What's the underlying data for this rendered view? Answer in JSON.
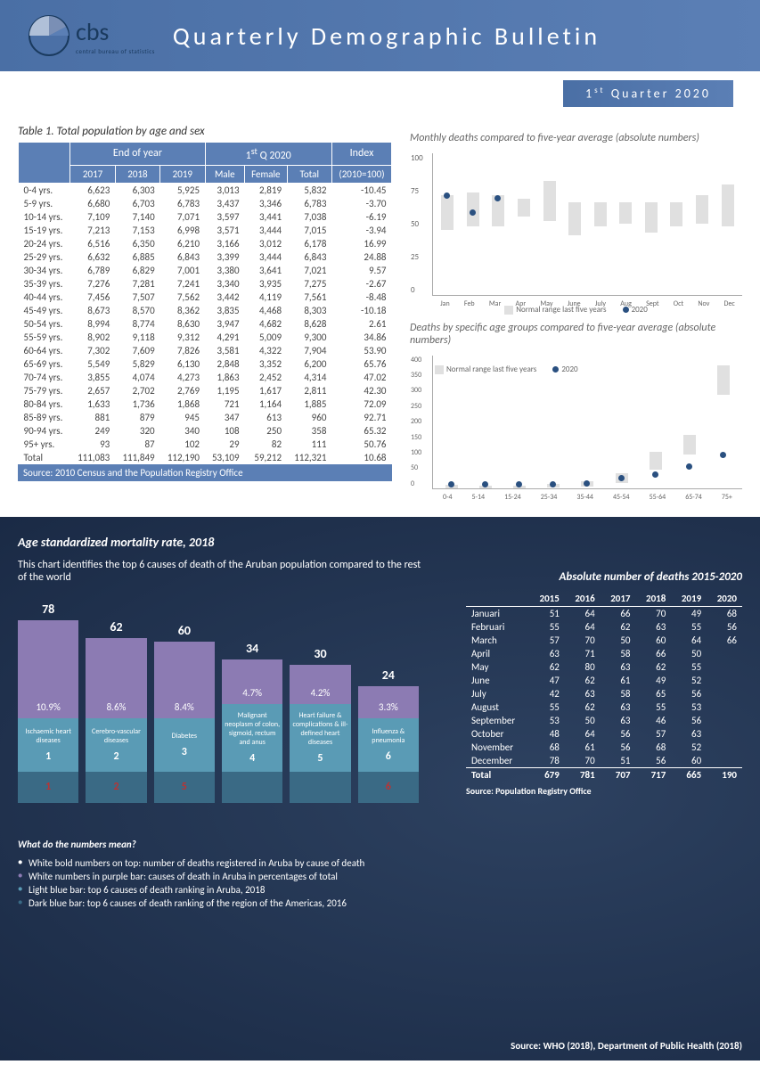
{
  "header": {
    "org": "cbs",
    "org_sub": "central bureau of statistics",
    "title": "Quarterly Demographic Bulletin",
    "quarter": "1",
    "quarter_suffix": "st",
    "quarter_rest": "Quarter 2020"
  },
  "table1": {
    "caption": "Table 1. Total population by age and sex",
    "group1": "End of year",
    "group2": "1",
    "group2_sup": "st",
    "group2_rest": "Q 2020",
    "group3": "Index",
    "cols": [
      "",
      "2017",
      "2018",
      "2019",
      "Male",
      "Female",
      "Total",
      "(2010=100)"
    ],
    "rows": [
      [
        "0-4 yrs.",
        "6,623",
        "6,303",
        "5,925",
        "3,013",
        "2,819",
        "5,832",
        "-10.45"
      ],
      [
        "5-9 yrs.",
        "6,680",
        "6,703",
        "6,783",
        "3,437",
        "3,346",
        "6,783",
        "-3.70"
      ],
      [
        "10-14 yrs.",
        "7,109",
        "7,140",
        "7,071",
        "3,597",
        "3,441",
        "7,038",
        "-6.19"
      ],
      [
        "15-19 yrs.",
        "7,213",
        "7,153",
        "6,998",
        "3,571",
        "3,444",
        "7,015",
        "-3.94"
      ],
      [
        "20-24 yrs.",
        "6,516",
        "6,350",
        "6,210",
        "3,166",
        "3,012",
        "6,178",
        "16.99"
      ],
      [
        "25-29 yrs.",
        "6,632",
        "6,885",
        "6,843",
        "3,399",
        "3,444",
        "6,843",
        "24.88"
      ],
      [
        "30-34 yrs.",
        "6,789",
        "6,829",
        "7,001",
        "3,380",
        "3,641",
        "7,021",
        "9.57"
      ],
      [
        "35-39 yrs.",
        "7,276",
        "7,281",
        "7,241",
        "3,340",
        "3,935",
        "7,275",
        "-2.67"
      ],
      [
        "40-44 yrs.",
        "7,456",
        "7,507",
        "7,562",
        "3,442",
        "4,119",
        "7,561",
        "-8.48"
      ],
      [
        "45-49 yrs.",
        "8,673",
        "8,570",
        "8,362",
        "3,835",
        "4,468",
        "8,303",
        "-10.18"
      ],
      [
        "50-54 yrs.",
        "8,994",
        "8,774",
        "8,630",
        "3,947",
        "4,682",
        "8,628",
        "2.61"
      ],
      [
        "55-59 yrs.",
        "8,902",
        "9,118",
        "9,312",
        "4,291",
        "5,009",
        "9,300",
        "34.86"
      ],
      [
        "60-64 yrs.",
        "7,302",
        "7,609",
        "7,826",
        "3,581",
        "4,322",
        "7,904",
        "53.90"
      ],
      [
        "65-69 yrs.",
        "5,549",
        "5,829",
        "6,130",
        "2,848",
        "3,352",
        "6,200",
        "65.76"
      ],
      [
        "70-74 yrs.",
        "3,855",
        "4,074",
        "4,273",
        "1,863",
        "2,452",
        "4,314",
        "47.02"
      ],
      [
        "75-79 yrs.",
        "2,657",
        "2,702",
        "2,769",
        "1,195",
        "1,617",
        "2,811",
        "42.30"
      ],
      [
        "80-84 yrs.",
        "1,633",
        "1,736",
        "1,868",
        "721",
        "1,164",
        "1,885",
        "72.09"
      ],
      [
        "85-89 yrs.",
        "881",
        "879",
        "945",
        "347",
        "613",
        "960",
        "92.71"
      ],
      [
        "90-94 yrs.",
        "249",
        "320",
        "340",
        "108",
        "250",
        "358",
        "65.32"
      ],
      [
        "95+ yrs.",
        "93",
        "87",
        "102",
        "29",
        "82",
        "111",
        "50.76"
      ]
    ],
    "total": [
      "Total",
      "111,083",
      "111,849",
      "112,190",
      "53,109",
      "59,212",
      "112,321",
      "10.68"
    ],
    "source": "Source: 2010 Census and the Population Registry Office"
  },
  "chart1": {
    "title": "Monthly deaths compared to five-year average (absolute numbers)",
    "ymax": 100,
    "yticks": [
      "100",
      "75",
      "50",
      "25",
      "0"
    ],
    "months": [
      "Jan",
      "Feb",
      "Mar",
      "Apr",
      "May",
      "June",
      "July",
      "Aug",
      "Sept",
      "Oct",
      "Nov",
      "Dec"
    ],
    "ranges": [
      [
        46,
        70
      ],
      [
        48,
        72
      ],
      [
        48,
        70
      ],
      [
        55,
        68
      ],
      [
        52,
        80
      ],
      [
        42,
        65
      ],
      [
        48,
        65
      ],
      [
        50,
        65
      ],
      [
        44,
        65
      ],
      [
        48,
        65
      ],
      [
        50,
        70
      ],
      [
        48,
        78
      ]
    ],
    "points2020": [
      68,
      56,
      66
    ],
    "legend_range": "Normal range last five years",
    "legend_2020": "2020",
    "range_color": "#e0e0e0",
    "dot_color": "#2a5080"
  },
  "chart2": {
    "title": "Deaths by specific age groups compared to five-year average (absolute numbers)",
    "ymax": 400,
    "yticks": [
      "400",
      "350",
      "300",
      "250",
      "200",
      "150",
      "100",
      "50",
      "0"
    ],
    "groups": [
      "0-4",
      "5-14",
      "15-24",
      "25-34",
      "35-44",
      "45-54",
      "55-64",
      "65-74",
      "75+"
    ],
    "ranges": [
      [
        0,
        10
      ],
      [
        0,
        6
      ],
      [
        0,
        8
      ],
      [
        2,
        12
      ],
      [
        5,
        20
      ],
      [
        15,
        45
      ],
      [
        55,
        110
      ],
      [
        100,
        160
      ],
      [
        280,
        370
      ]
    ],
    "points2020": [
      2,
      1,
      2,
      3,
      5,
      20,
      30,
      55,
      90
    ],
    "legend_range": "Normal range last five years",
    "legend_2020": "2020"
  },
  "mortality": {
    "title": "Age standardized mortality rate, 2018",
    "desc": "This chart identifies the top 6 causes of death of the Aruban population compared to the rest of the world",
    "causes": [
      {
        "n": "78",
        "pct": "10.9%",
        "label": "Ischaemic heart diseases",
        "rank_a": "1",
        "rank_b": "1",
        "h": 110
      },
      {
        "n": "62",
        "pct": "8.6%",
        "label": "Cerebro-vascular diseases",
        "rank_a": "2",
        "rank_b": "2",
        "h": 90
      },
      {
        "n": "60",
        "pct": "8.4%",
        "label": "Diabetes",
        "rank_a": "3",
        "rank_b": "5",
        "h": 86
      },
      {
        "n": "34",
        "pct": "4.7%",
        "label": "Malignant neoplasm of colon, sigmoid, rectum and anus",
        "rank_a": "4",
        "rank_b": "",
        "h": 50
      },
      {
        "n": "30",
        "pct": "4.2%",
        "label": "Heart failure & complications & ill-defined heart diseases",
        "rank_a": "5",
        "rank_b": "",
        "h": 44
      },
      {
        "n": "24",
        "pct": "3.3%",
        "label": "Influenza & pneumonia",
        "rank_a": "6",
        "rank_b": "6",
        "h": 36
      }
    ],
    "purple": "#8c7bb3",
    "lightblue": "#5a9bb5",
    "darkblue": "#3a6a85"
  },
  "deaths_abs": {
    "title": "Absolute number of deaths 2015-2020",
    "cols": [
      "",
      "2015",
      "2016",
      "2017",
      "2018",
      "2019",
      "2020"
    ],
    "rows": [
      [
        "Januari",
        "51",
        "64",
        "66",
        "70",
        "49",
        "68"
      ],
      [
        "Februari",
        "55",
        "64",
        "62",
        "63",
        "55",
        "56"
      ],
      [
        "March",
        "57",
        "70",
        "50",
        "60",
        "64",
        "66"
      ],
      [
        "April",
        "63",
        "71",
        "58",
        "66",
        "50",
        ""
      ],
      [
        "May",
        "62",
        "80",
        "63",
        "62",
        "55",
        ""
      ],
      [
        "June",
        "47",
        "62",
        "61",
        "49",
        "52",
        ""
      ],
      [
        "July",
        "42",
        "63",
        "58",
        "65",
        "56",
        ""
      ],
      [
        "August",
        "55",
        "62",
        "63",
        "55",
        "53",
        ""
      ],
      [
        "September",
        "53",
        "50",
        "63",
        "46",
        "56",
        ""
      ],
      [
        "October",
        "48",
        "64",
        "56",
        "57",
        "63",
        ""
      ],
      [
        "November",
        "68",
        "61",
        "56",
        "68",
        "52",
        ""
      ],
      [
        "December",
        "78",
        "70",
        "51",
        "56",
        "60",
        ""
      ]
    ],
    "total": [
      "Total",
      "679",
      "781",
      "707",
      "717",
      "665",
      "190"
    ],
    "source": "Source: Population Registry Office"
  },
  "meanings": {
    "title": "What do the numbers mean?",
    "items": [
      {
        "cls": "bullet-white",
        "text": "White bold numbers on top: number of deaths registered in Aruba by cause of death"
      },
      {
        "cls": "bullet-purple",
        "text": "White numbers in purple bar: causes of death in Aruba in percentages of total"
      },
      {
        "cls": "bullet-lightblue",
        "text": "Light blue bar: top 6 causes of death ranking in Aruba, 2018"
      },
      {
        "cls": "bullet-darkblue",
        "text": "Dark blue bar: top 6 causes of death ranking of the region of the Americas, 2016"
      }
    ]
  },
  "bottom_source": "Source: WHO (2018), Department of Public Health (2018)"
}
